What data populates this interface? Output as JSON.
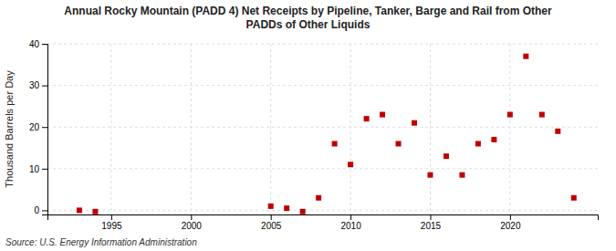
{
  "chart_data": {
    "type": "scatter",
    "title": "Annual Rocky Mountain (PADD 4) Net Receipts by Pipeline, Tanker, Barge and Rail from Other\nPADDs of Other Liquids",
    "y_label": "Thousand Barrels per Day",
    "annotations": [
      "Source: U.S. Energy Information Administration"
    ],
    "x": [
      1993,
      1994,
      2005,
      2006,
      2007,
      2008,
      2009,
      2010,
      2011,
      2012,
      2013,
      2014,
      2015,
      2016,
      2017,
      2018,
      2019,
      2020,
      2021,
      2022,
      2023,
      2024
    ],
    "values": [
      0.0,
      -0.3,
      1.0,
      0.5,
      -0.3,
      3.0,
      16.0,
      11.0,
      22.0,
      23.0,
      16.0,
      21.0,
      8.5,
      13.0,
      8.5,
      16.0,
      17.0,
      23.0,
      37.0,
      23.0,
      19.0,
      3.0
    ],
    "color": "#c00000",
    "marker": "square",
    "xlim": [
      1991,
      2025.5
    ],
    "ylim": [
      -1,
      40
    ],
    "yticks": [
      0,
      10,
      20,
      30,
      40
    ],
    "xticks": [
      1995,
      2000,
      2005,
      2010,
      2015,
      2020
    ],
    "grid": true
  }
}
